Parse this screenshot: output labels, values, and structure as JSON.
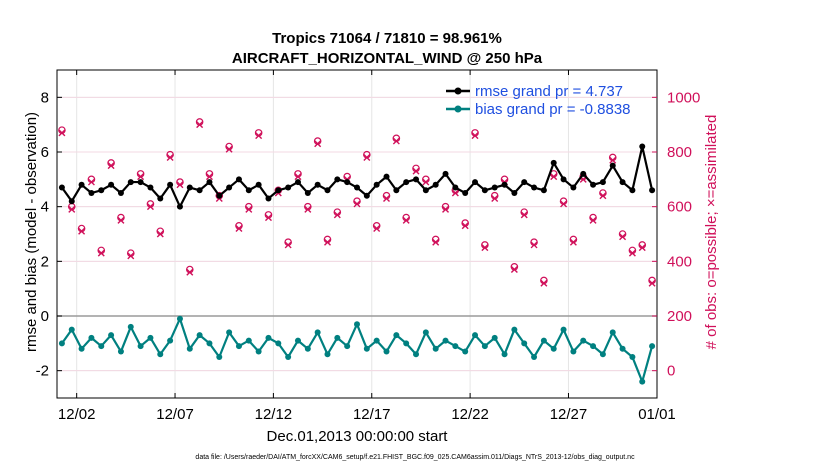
{
  "chart_data": {
    "type": "line",
    "title_line1": "Tropics 71064 / 71810 = 98.961%",
    "title_line2": "AIRCRAFT_HORIZONTAL_WIND @ 250 hPa",
    "xlabel": "Dec.01,2013 00:00:00 start",
    "ylabel_left": "rmse and bias (model - observation)",
    "ylabel_right": "# of obs: o=possible; ×=assimilated",
    "x_range": [
      0.5,
      31.0
    ],
    "ylim_left": [
      -3.0,
      9.0
    ],
    "ylim_right": [
      -100,
      1100
    ],
    "xtick_positions": [
      1.5,
      6.5,
      11.5,
      16.5,
      21.5,
      26.5,
      31.0
    ],
    "xtick_labels": [
      "12/02",
      "12/07",
      "12/12",
      "12/17",
      "12/22",
      "12/27",
      "01/01"
    ],
    "ytick_left": [
      -2,
      0,
      2,
      4,
      6,
      8
    ],
    "ytick_right": [
      0,
      200,
      400,
      600,
      800,
      1000
    ],
    "legend": [
      {
        "label": "rmse grand pr = 4.737",
        "color": "#000000"
      },
      {
        "label": "bias grand pr = -0.8838",
        "color": "#008080"
      }
    ],
    "colors": {
      "rmse": "#000000",
      "bias": "#008080",
      "counts": "#d0105a",
      "zero_line": "#9a9a9a",
      "legend_text": "#1f4fe0"
    },
    "rmse_series": {
      "x": [
        0.75,
        1.25,
        1.75,
        2.25,
        2.75,
        3.25,
        3.75,
        4.25,
        4.75,
        5.25,
        5.75,
        6.25,
        6.75,
        7.25,
        7.75,
        8.25,
        8.75,
        9.25,
        9.75,
        10.25,
        10.75,
        11.25,
        11.75,
        12.25,
        12.75,
        13.25,
        13.75,
        14.25,
        14.75,
        15.25,
        15.75,
        16.25,
        16.75,
        17.25,
        17.75,
        18.25,
        18.75,
        19.25,
        19.75,
        20.25,
        20.75,
        21.25,
        21.75,
        22.25,
        22.75,
        23.25,
        23.75,
        24.25,
        24.75,
        25.25,
        25.75,
        26.25,
        26.75,
        27.25,
        27.75,
        28.25,
        28.75,
        29.25,
        29.75,
        30.25,
        30.75
      ],
      "values": [
        4.7,
        4.2,
        4.8,
        4.5,
        4.6,
        4.8,
        4.5,
        4.9,
        4.9,
        4.7,
        4.3,
        4.8,
        4.0,
        4.7,
        4.6,
        4.9,
        4.4,
        4.7,
        5.0,
        4.6,
        4.8,
        4.3,
        4.6,
        4.7,
        4.9,
        4.5,
        4.8,
        4.6,
        5.0,
        4.9,
        4.7,
        4.4,
        4.8,
        5.1,
        4.6,
        4.9,
        5.0,
        4.6,
        4.8,
        5.2,
        4.7,
        4.5,
        4.9,
        4.6,
        4.7,
        4.8,
        4.5,
        4.9,
        4.7,
        4.6,
        5.6,
        5.0,
        4.7,
        5.2,
        4.8,
        4.9,
        5.5,
        4.9,
        4.6,
        6.2,
        4.6
      ]
    },
    "bias_series": {
      "x": [
        0.75,
        1.25,
        1.75,
        2.25,
        2.75,
        3.25,
        3.75,
        4.25,
        4.75,
        5.25,
        5.75,
        6.25,
        6.75,
        7.25,
        7.75,
        8.25,
        8.75,
        9.25,
        9.75,
        10.25,
        10.75,
        11.25,
        11.75,
        12.25,
        12.75,
        13.25,
        13.75,
        14.25,
        14.75,
        15.25,
        15.75,
        16.25,
        16.75,
        17.25,
        17.75,
        18.25,
        18.75,
        19.25,
        19.75,
        20.25,
        20.75,
        21.25,
        21.75,
        22.25,
        22.75,
        23.25,
        23.75,
        24.25,
        24.75,
        25.25,
        25.75,
        26.25,
        26.75,
        27.25,
        27.75,
        28.25,
        28.75,
        29.25,
        29.75,
        30.25,
        30.75
      ],
      "values": [
        -1.0,
        -0.5,
        -1.2,
        -0.8,
        -1.1,
        -0.7,
        -1.3,
        -0.4,
        -1.1,
        -0.8,
        -1.4,
        -0.9,
        -0.1,
        -1.2,
        -0.7,
        -1.0,
        -1.5,
        -0.6,
        -1.1,
        -0.9,
        -1.3,
        -0.8,
        -1.0,
        -1.5,
        -0.9,
        -1.2,
        -0.6,
        -1.4,
        -0.8,
        -1.1,
        -0.3,
        -1.2,
        -0.9,
        -1.3,
        -0.7,
        -1.0,
        -1.4,
        -0.6,
        -1.2,
        -0.9,
        -1.1,
        -1.3,
        -0.7,
        -1.1,
        -0.8,
        -1.4,
        -0.5,
        -1.0,
        -1.5,
        -0.9,
        -1.2,
        -0.5,
        -1.3,
        -0.9,
        -1.1,
        -1.4,
        -0.6,
        -1.2,
        -1.5,
        -2.4,
        -1.1
      ]
    },
    "obs_possible": {
      "x": [
        0.75,
        1.25,
        1.75,
        2.25,
        2.75,
        3.25,
        3.75,
        4.25,
        4.75,
        5.25,
        5.75,
        6.25,
        6.75,
        7.25,
        7.75,
        8.25,
        8.75,
        9.25,
        9.75,
        10.25,
        10.75,
        11.25,
        11.75,
        12.25,
        12.75,
        13.25,
        13.75,
        14.25,
        14.75,
        15.25,
        15.75,
        16.25,
        16.75,
        17.25,
        17.75,
        18.25,
        18.75,
        19.25,
        19.75,
        20.25,
        20.75,
        21.25,
        21.75,
        22.25,
        22.75,
        23.25,
        23.75,
        24.25,
        24.75,
        25.25,
        25.75,
        26.25,
        26.75,
        27.25,
        27.75,
        28.25,
        28.75,
        29.25,
        29.75,
        30.25,
        30.75
      ],
      "values": [
        880,
        600,
        520,
        700,
        440,
        760,
        560,
        430,
        720,
        610,
        510,
        790,
        690,
        370,
        910,
        720,
        640,
        820,
        530,
        600,
        870,
        570,
        660,
        470,
        720,
        600,
        840,
        480,
        580,
        710,
        620,
        790,
        530,
        640,
        850,
        560,
        740,
        700,
        480,
        600,
        660,
        540,
        870,
        460,
        640,
        700,
        380,
        580,
        470,
        330,
        720,
        620,
        480,
        710,
        560,
        650,
        780,
        500,
        440,
        460,
        330
      ]
    },
    "obs_assimilated": {
      "x": [
        0.75,
        1.25,
        1.75,
        2.25,
        2.75,
        3.25,
        3.75,
        4.25,
        4.75,
        5.25,
        5.75,
        6.25,
        6.75,
        7.25,
        7.75,
        8.25,
        8.75,
        9.25,
        9.75,
        10.25,
        10.75,
        11.25,
        11.75,
        12.25,
        12.75,
        13.25,
        13.75,
        14.25,
        14.75,
        15.25,
        15.75,
        16.25,
        16.75,
        17.25,
        17.75,
        18.25,
        18.75,
        19.25,
        19.75,
        20.25,
        20.75,
        21.25,
        21.75,
        22.25,
        22.75,
        23.25,
        23.75,
        24.25,
        24.75,
        25.25,
        25.75,
        26.25,
        26.75,
        27.25,
        27.75,
        28.25,
        28.75,
        29.25,
        29.75,
        30.25,
        30.75
      ],
      "values": [
        870,
        590,
        510,
        690,
        430,
        750,
        550,
        420,
        710,
        600,
        500,
        780,
        680,
        360,
        900,
        710,
        630,
        810,
        520,
        590,
        860,
        560,
        650,
        460,
        710,
        590,
        830,
        470,
        570,
        700,
        610,
        780,
        520,
        630,
        840,
        550,
        730,
        690,
        470,
        590,
        650,
        530,
        860,
        450,
        630,
        690,
        370,
        570,
        460,
        320,
        710,
        610,
        470,
        700,
        550,
        640,
        770,
        490,
        430,
        450,
        320
      ]
    }
  },
  "footer": "data file: /Users/raeder/DAI/ATM_forcXX/CAM6_setup/f.e21.FHIST_BGC.f09_025.CAM6assim.011/Diags_NTrS_2013-12/obs_diag_output.nc"
}
